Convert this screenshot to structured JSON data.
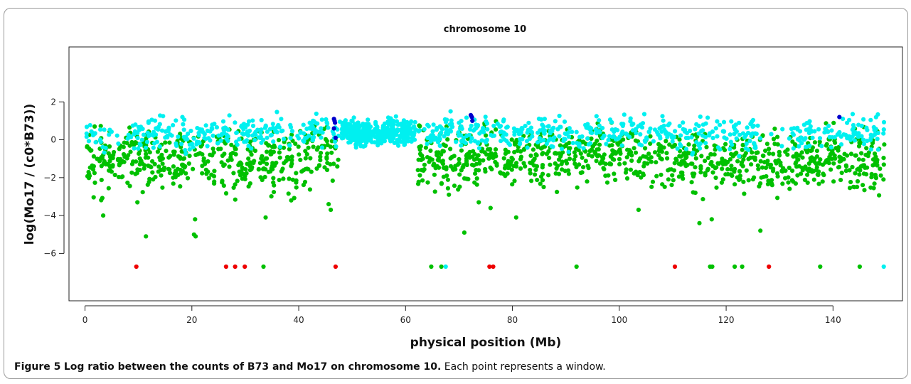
{
  "chart_data": {
    "type": "scatter",
    "title": "chromosome 10",
    "xlabel": "physical position (Mb)",
    "ylabel": "log(Mo17 / (c0*B73))",
    "xlim": [
      -3,
      153
    ],
    "ylim": [
      -8.5,
      4.9
    ],
    "xticks": [
      0,
      20,
      40,
      60,
      80,
      100,
      120,
      140
    ],
    "yticks": [
      -6,
      -4,
      -2,
      0,
      2
    ],
    "grid": false,
    "legend": "none",
    "colors": {
      "green": "#00c000",
      "cyan": "#00f0f0",
      "blue": "#0000cc",
      "red": "#ee0000"
    },
    "profile_green": [
      [
        0,
        -1.1
      ],
      [
        5,
        -1.0
      ],
      [
        10,
        -1.1
      ],
      [
        15,
        -1.1
      ],
      [
        20,
        -0.9
      ],
      [
        25,
        -1.2
      ],
      [
        30,
        -1.1
      ],
      [
        35,
        -1.0
      ],
      [
        40,
        -1.3
      ],
      [
        44,
        -0.8
      ],
      [
        47,
        -0.5
      ],
      [
        62,
        -0.9
      ],
      [
        68,
        -1.0
      ],
      [
        75,
        -1.0
      ],
      [
        80,
        -0.9
      ],
      [
        85,
        -0.8
      ],
      [
        90,
        -0.8
      ],
      [
        95,
        -0.6
      ],
      [
        100,
        -0.7
      ],
      [
        105,
        -1.1
      ],
      [
        110,
        -1.0
      ],
      [
        115,
        -1.0
      ],
      [
        120,
        -1.1
      ],
      [
        125,
        -1.0
      ],
      [
        130,
        -1.1
      ],
      [
        135,
        -1.1
      ],
      [
        140,
        -0.9
      ],
      [
        145,
        -1.1
      ],
      [
        149,
        -1.3
      ]
    ],
    "profile_cyan": [
      [
        0,
        0.2
      ],
      [
        5,
        0.1
      ],
      [
        10,
        0.2
      ],
      [
        15,
        0.3
      ],
      [
        20,
        0.2
      ],
      [
        25,
        0.4
      ],
      [
        30,
        0.4
      ],
      [
        35,
        0.5
      ],
      [
        40,
        0.3
      ],
      [
        45,
        0.6
      ],
      [
        50,
        0.4
      ],
      [
        55,
        0.4
      ],
      [
        60,
        0.4
      ],
      [
        65,
        0.5
      ],
      [
        70,
        0.4
      ],
      [
        75,
        0.5
      ],
      [
        80,
        0.3
      ],
      [
        85,
        0.4
      ],
      [
        90,
        0.4
      ],
      [
        95,
        0.5
      ],
      [
        100,
        0.4
      ],
      [
        105,
        0.5
      ],
      [
        110,
        0.3
      ],
      [
        115,
        0.2
      ],
      [
        120,
        0.3
      ],
      [
        125,
        0.2
      ],
      [
        130,
        0.2
      ],
      [
        135,
        0.2
      ],
      [
        140,
        0.3
      ],
      [
        145,
        0.3
      ],
      [
        149,
        0.4
      ]
    ],
    "cyan_gaps": [
      [
        4,
        8
      ],
      [
        60.5,
        63.5
      ],
      [
        126,
        132
      ]
    ],
    "blue_points": [
      [
        46.6,
        1.1
      ],
      [
        46.7,
        1.0
      ],
      [
        46.8,
        0.9
      ],
      [
        46.6,
        0.6
      ],
      [
        46.9,
        0.1
      ],
      [
        72.2,
        1.3
      ],
      [
        72.4,
        1.2
      ],
      [
        72.5,
        1.0
      ],
      [
        141.2,
        1.2
      ]
    ],
    "red_points": [
      [
        9.6,
        -6.7
      ],
      [
        26.4,
        -6.7
      ],
      [
        28.1,
        -6.7
      ],
      [
        29.9,
        -6.7
      ],
      [
        46.9,
        -6.7
      ],
      [
        75.7,
        -6.7
      ],
      [
        76.4,
        -6.7
      ],
      [
        110.4,
        -6.7
      ],
      [
        128.0,
        -6.7
      ]
    ],
    "green_bottom_points": [
      [
        33.4,
        -6.7
      ],
      [
        64.8,
        -6.7
      ],
      [
        66.7,
        -6.7
      ],
      [
        92.0,
        -6.7
      ],
      [
        117.0,
        -6.7
      ],
      [
        117.4,
        -6.7
      ],
      [
        121.6,
        -6.7
      ],
      [
        123.0,
        -6.7
      ],
      [
        137.6,
        -6.7
      ],
      [
        145.0,
        -6.7
      ]
    ],
    "cyan_bottom_points": [
      [
        67.5,
        -6.7
      ],
      [
        149.5,
        -6.7
      ]
    ],
    "green_outliers": [
      [
        3.4,
        -4.0
      ],
      [
        11.4,
        -5.1
      ],
      [
        20.4,
        -5.0
      ],
      [
        20.7,
        -5.1
      ],
      [
        20.6,
        -4.2
      ],
      [
        33.8,
        -4.1
      ],
      [
        45.6,
        -3.4
      ],
      [
        46.0,
        -3.7
      ],
      [
        71.0,
        -4.9
      ],
      [
        80.7,
        -4.1
      ],
      [
        103.6,
        -3.7
      ],
      [
        115.0,
        -4.4
      ],
      [
        117.3,
        -4.2
      ],
      [
        126.4,
        -4.8
      ],
      [
        9.8,
        -3.3
      ],
      [
        38.6,
        -3.2
      ],
      [
        73.7,
        -3.3
      ],
      [
        75.9,
        -3.6
      ]
    ]
  },
  "caption": {
    "label": "Figure 5",
    "title": "Log ratio between the counts of B73 and Mo17 on chromosome 10.",
    "text": "Each point represents a window."
  }
}
